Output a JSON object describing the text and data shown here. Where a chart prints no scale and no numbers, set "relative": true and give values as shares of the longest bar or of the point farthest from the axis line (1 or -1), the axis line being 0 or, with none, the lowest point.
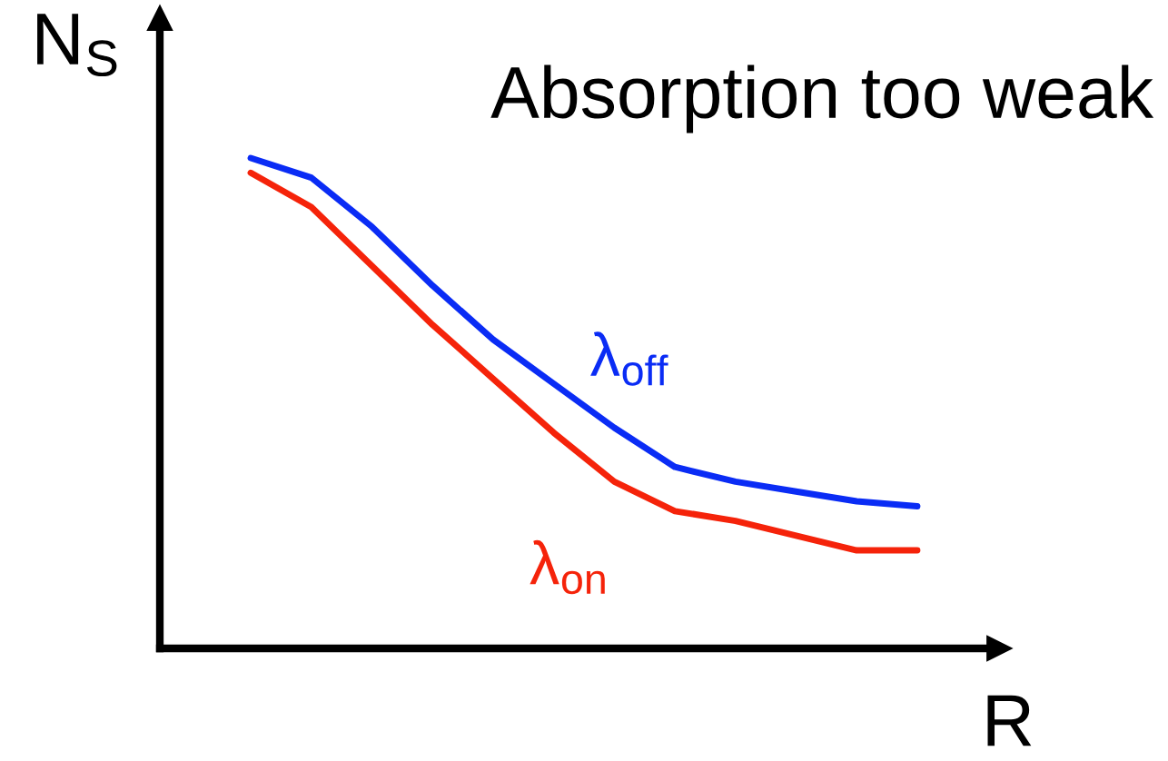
{
  "chart_data": {
    "type": "line",
    "relative": true,
    "title": "Absorption too weak",
    "xlabel": "R",
    "ylabel": "N$_{S}$",
    "categories": [
      null,
      null,
      null,
      null,
      null,
      null,
      null,
      null,
      null,
      null,
      null,
      null
    ],
    "series": [
      {
        "name": "λ$_{off}$",
        "color": "#0a2cf5",
        "values": [
          1.0,
          0.96,
          0.86,
          0.74,
          0.63,
          0.54,
          0.45,
          0.37,
          0.34,
          0.32,
          0.3,
          0.29
        ]
      },
      {
        "name": "λ$_{on}$",
        "color": "#f5230a",
        "values": [
          0.97,
          0.9,
          0.78,
          0.66,
          0.55,
          0.44,
          0.34,
          0.28,
          0.26,
          0.23,
          0.2,
          0.2
        ]
      }
    ],
    "legend": false,
    "marker": "none",
    "line_style": "solid"
  }
}
